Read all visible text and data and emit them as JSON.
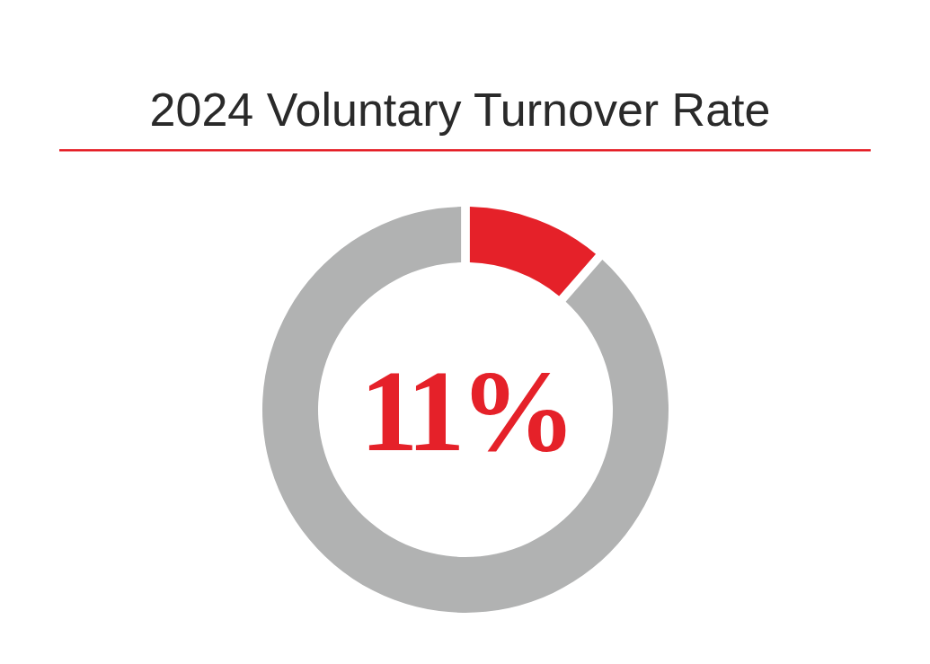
{
  "chart_data": {
    "type": "donut",
    "title": "2024 Voluntary Turnover Rate",
    "categories": [
      null,
      null
    ],
    "values": [
      11,
      89
    ],
    "colors": [
      "#e52129",
      "#b1b2b2"
    ],
    "annotations": [
      "11%"
    ]
  }
}
